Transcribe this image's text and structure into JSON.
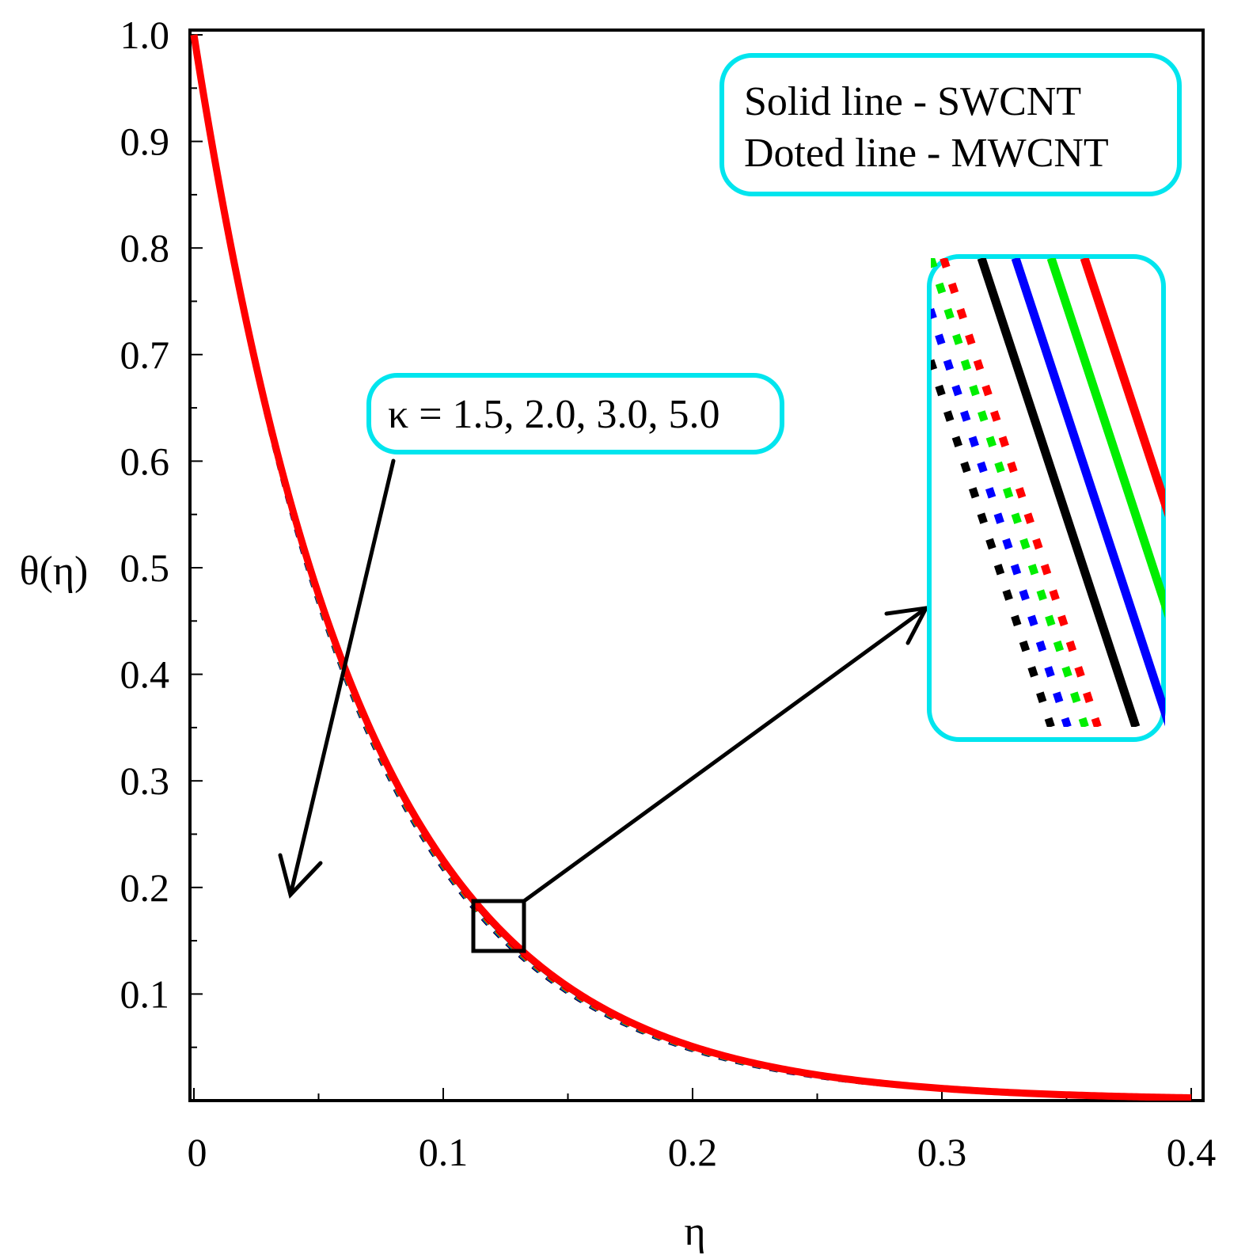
{
  "chart_data": {
    "type": "line",
    "xlabel": "η",
    "ylabel": "θ(η)",
    "xlim": [
      0,
      0.4
    ],
    "ylim": [
      0,
      1.0
    ],
    "x_ticks": [
      "0",
      "0.1",
      "0.2",
      "0.3",
      "0.4"
    ],
    "y_ticks": [
      "0.1",
      "0.2",
      "0.3",
      "0.4",
      "0.5",
      "0.6",
      "0.7",
      "0.8",
      "0.9",
      "1.0"
    ],
    "series": [
      {
        "name": "SWCNT κ=1.5",
        "style": "solid",
        "color": "#000000",
        "decay": 15.05
      },
      {
        "name": "SWCNT κ=2.0",
        "style": "solid",
        "color": "#0000ff",
        "decay": 15.0
      },
      {
        "name": "SWCNT κ=3.0",
        "style": "solid",
        "color": "#00ee00",
        "decay": 14.95
      },
      {
        "name": "SWCNT κ=5.0",
        "style": "solid",
        "color": "#ff0000",
        "decay": 14.9
      },
      {
        "name": "MWCNT κ=1.5",
        "style": "dotted",
        "color": "#000000",
        "decay": 15.3
      },
      {
        "name": "MWCNT κ=2.0",
        "style": "dotted",
        "color": "#0000ff",
        "decay": 15.25
      },
      {
        "name": "MWCNT κ=3.0",
        "style": "dotted",
        "color": "#00ee00",
        "decay": 15.2
      },
      {
        "name": "MWCNT κ=5.0",
        "style": "dotted",
        "color": "#ff0000",
        "decay": 15.15
      }
    ],
    "legend": {
      "line1": "Solid line - SWCNT",
      "line2": "Doted line - MWCNT",
      "border_color": "#00e5ee"
    },
    "annotation": {
      "text": "κ = 1.5, 2.0, 3.0, 5.0",
      "border_color": "#00e5ee"
    },
    "zoom_region": {
      "x_range": [
        0.113,
        0.132
      ],
      "y_range": [
        0.143,
        0.19
      ]
    },
    "inset": {
      "order": [
        "dotted-black",
        "dotted-blue",
        "dotted-green",
        "dotted-red",
        "solid-black",
        "solid-blue",
        "solid-green",
        "solid-red"
      ],
      "border_color": "#00e5ee"
    }
  }
}
